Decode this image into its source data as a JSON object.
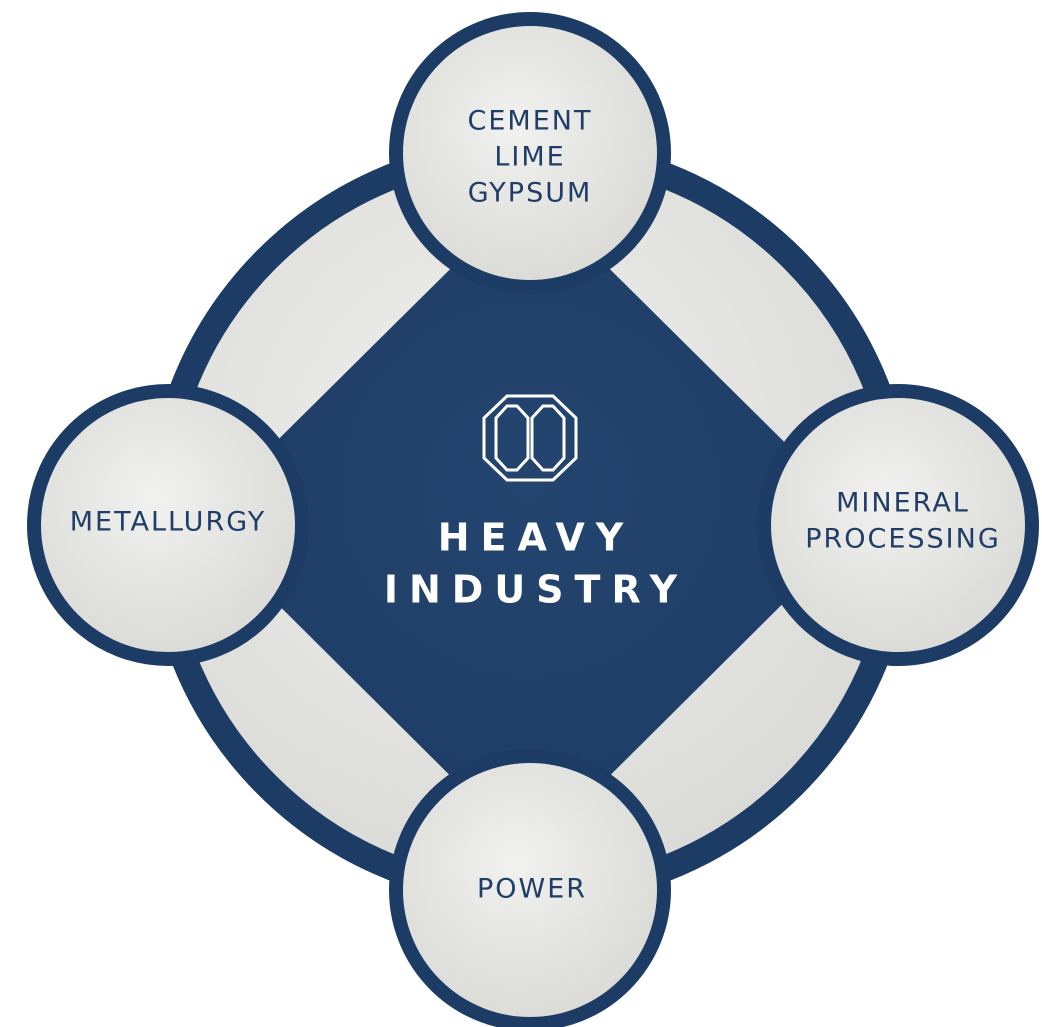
{
  "center": {
    "lines": [
      "HEAVY",
      "INDUSTRY"
    ]
  },
  "nodes": [
    {
      "lines": [
        "CEMENT",
        "LIME",
        "GYPSUM"
      ]
    },
    {
      "lines": [
        "MINERAL",
        "PROCESSING"
      ]
    },
    {
      "lines": [
        "POWER"
      ]
    },
    {
      "lines": [
        "METALLURGY"
      ]
    }
  ]
}
